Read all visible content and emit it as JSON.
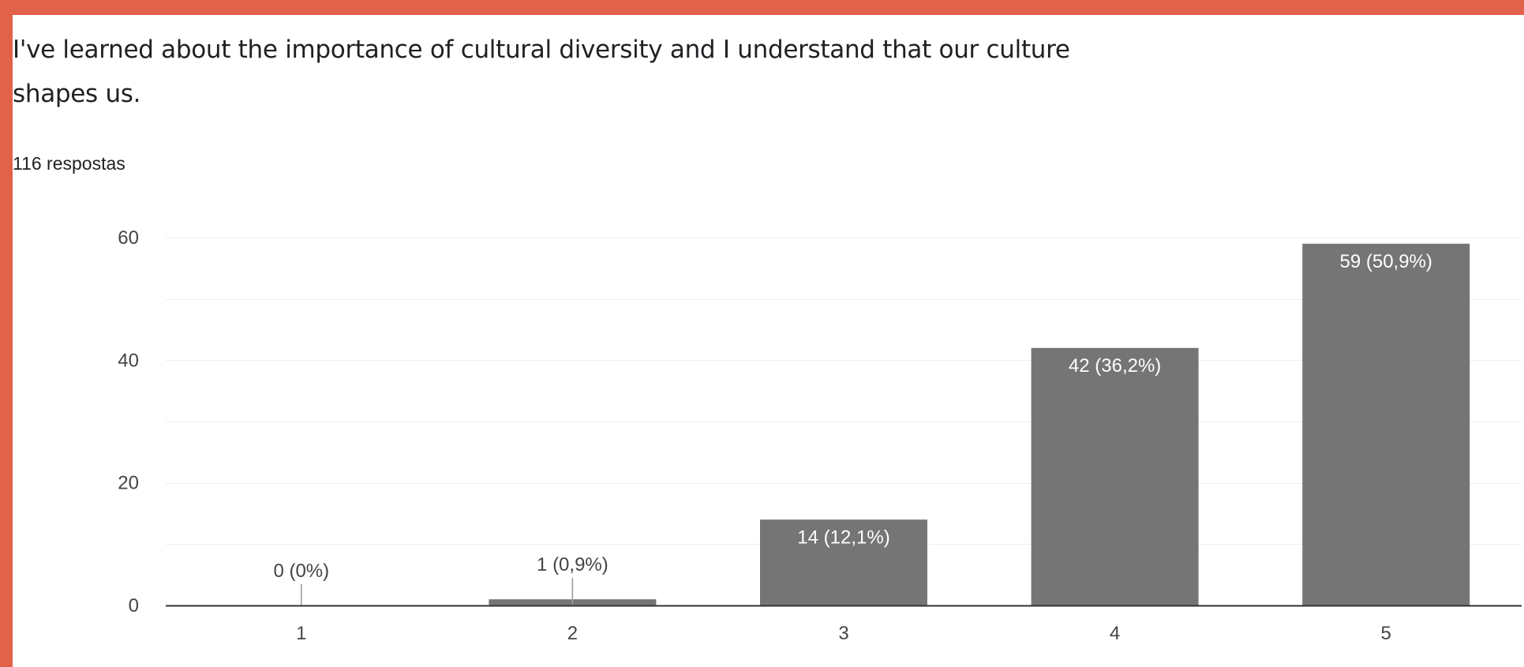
{
  "question": {
    "line1": "I've learned about the importance of cultural diversity and I understand that our culture",
    "line2": "shapes us."
  },
  "responses_label": "116 respostas",
  "colors": {
    "frame": "#e2614b",
    "bar": "#757575",
    "grid": "#eeeeee",
    "axis": "#333333",
    "label_inside": "#ffffff",
    "label_outside": "#444444"
  },
  "chart_data": {
    "type": "bar",
    "categories": [
      "1",
      "2",
      "3",
      "4",
      "5"
    ],
    "values": [
      0,
      1,
      14,
      42,
      59
    ],
    "data_labels": [
      "0 (0%)",
      "1 (0,9%)",
      "14 (12,1%)",
      "42 (36,2%)",
      "59 (50,9%)"
    ],
    "ylim": [
      0,
      60
    ],
    "yticks": [
      0,
      20,
      40,
      60
    ],
    "grid": true,
    "title": "",
    "xlabel": "",
    "ylabel": ""
  }
}
